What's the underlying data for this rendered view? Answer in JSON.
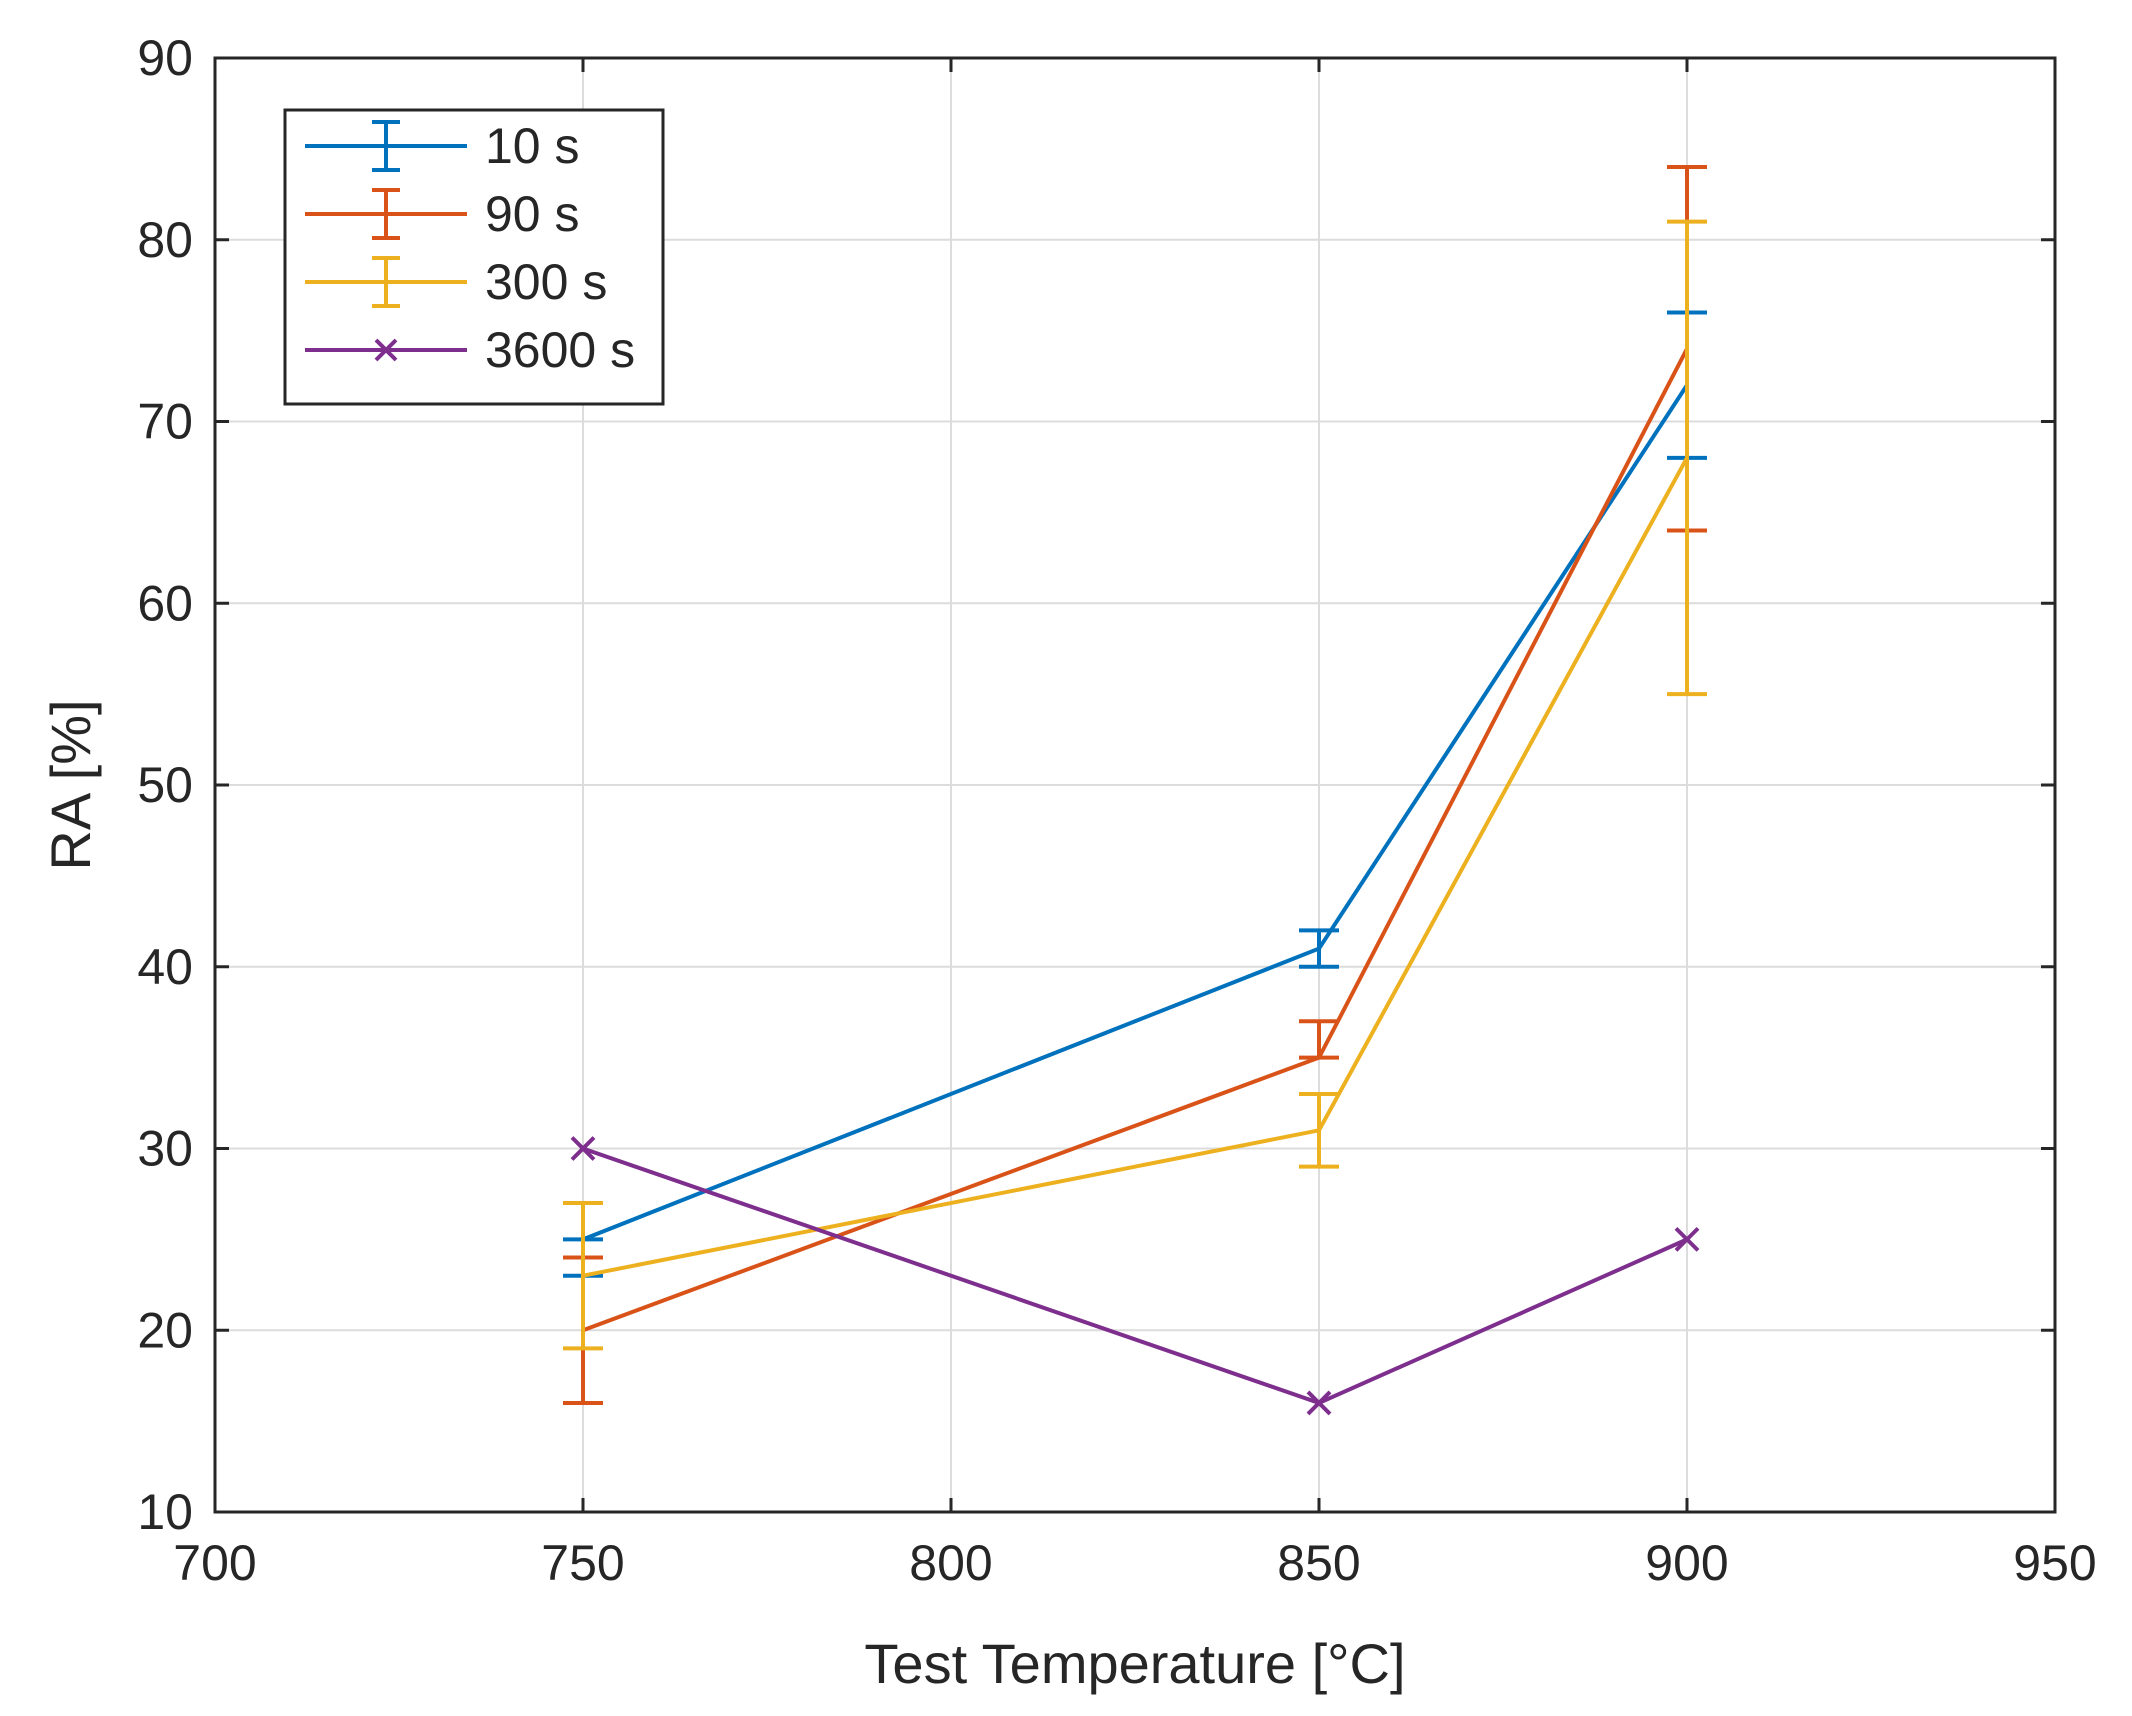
{
  "chart_data": {
    "type": "line",
    "title": "",
    "xlabel": "Test Temperature [°C]",
    "ylabel": "RA [%]",
    "xlim": [
      700,
      950
    ],
    "ylim": [
      10,
      90
    ],
    "xticks": [
      700,
      750,
      800,
      850,
      900,
      950
    ],
    "yticks": [
      10,
      20,
      30,
      40,
      50,
      60,
      70,
      80,
      90
    ],
    "grid": true,
    "legend_position": "top-left",
    "series": [
      {
        "name": "10 s",
        "color": "#0072BD",
        "marker": "none",
        "x": [
          750,
          850,
          900
        ],
        "values": [
          25,
          41,
          72
        ],
        "err_low": [
          23,
          40,
          68
        ],
        "err_high": [
          25,
          42,
          76
        ]
      },
      {
        "name": "90 s",
        "color": "#D95319",
        "marker": "none",
        "x": [
          750,
          850,
          900
        ],
        "values": [
          20,
          35,
          74
        ],
        "err_low": [
          16,
          35,
          64
        ],
        "err_high": [
          24,
          37,
          84
        ]
      },
      {
        "name": "300 s",
        "color": "#EDB120",
        "marker": "none",
        "x": [
          750,
          850,
          900
        ],
        "values": [
          23,
          31,
          68
        ],
        "err_low": [
          19,
          29,
          55
        ],
        "err_high": [
          27,
          33,
          81
        ]
      },
      {
        "name": "3600 s",
        "color": "#7E2F8E",
        "marker": "x",
        "x": [
          750,
          850,
          900
        ],
        "values": [
          30,
          16,
          25
        ]
      }
    ]
  }
}
